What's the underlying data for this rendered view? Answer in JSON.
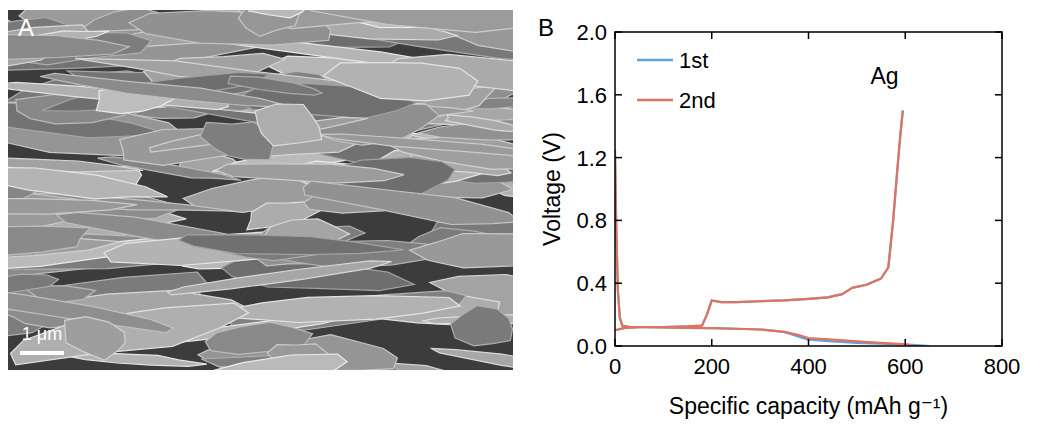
{
  "image_panel": {
    "label": "A",
    "scale_bar": "1 μm"
  },
  "chart_data": {
    "type": "line",
    "panel_label": "B",
    "x_label": "Specific capacity (mAh g⁻¹)",
    "y_label": "Voltage (V)",
    "annotation": "Ag",
    "xlim": [
      0,
      800
    ],
    "xticks": [
      0,
      200,
      400,
      600,
      800
    ],
    "ylim": [
      0,
      2
    ],
    "yticks": [
      {
        "value": 0,
        "label": "0.0"
      },
      0.4,
      0.8,
      1.2,
      1.6,
      {
        "value": 2,
        "label": "2.0"
      }
    ],
    "legend": "upper left",
    "grid": false,
    "series": [
      {
        "name": "1st",
        "color": "#5fa3dc",
        "x": [
          0,
          3,
          6,
          10,
          15,
          30,
          60,
          100,
          150,
          200,
          250,
          300,
          350,
          380,
          400,
          450,
          500,
          550,
          600,
          650,
          null,
          0,
          20,
          50,
          100,
          150,
          180,
          190,
          200,
          220,
          250,
          300,
          350,
          400,
          440,
          470,
          490,
          520,
          550,
          565,
          575,
          583,
          590,
          595
        ],
        "values": [
          1.2,
          0.7,
          0.35,
          0.18,
          0.13,
          0.12,
          0.12,
          0.118,
          0.116,
          0.114,
          0.11,
          0.105,
          0.09,
          0.06,
          0.04,
          0.03,
          0.02,
          0.015,
          0.01,
          0.0,
          null,
          0.1,
          0.115,
          0.12,
          0.12,
          0.125,
          0.13,
          0.2,
          0.29,
          0.28,
          0.28,
          0.285,
          0.29,
          0.3,
          0.31,
          0.33,
          0.37,
          0.39,
          0.43,
          0.5,
          0.8,
          1.1,
          1.35,
          1.5
        ]
      },
      {
        "name": "2nd",
        "color": "#e0735f",
        "x": [
          0,
          3,
          6,
          10,
          15,
          30,
          60,
          100,
          150,
          200,
          250,
          300,
          350,
          380,
          400,
          450,
          500,
          550,
          600,
          620,
          null,
          0,
          20,
          50,
          100,
          150,
          180,
          190,
          200,
          220,
          250,
          300,
          350,
          400,
          440,
          470,
          490,
          520,
          550,
          565,
          575,
          583,
          590,
          595
        ],
        "values": [
          1.25,
          0.7,
          0.35,
          0.18,
          0.13,
          0.12,
          0.12,
          0.118,
          0.116,
          0.114,
          0.11,
          0.105,
          0.09,
          0.07,
          0.05,
          0.04,
          0.03,
          0.02,
          0.01,
          0.0,
          null,
          0.1,
          0.115,
          0.12,
          0.12,
          0.125,
          0.13,
          0.2,
          0.29,
          0.28,
          0.28,
          0.285,
          0.29,
          0.3,
          0.31,
          0.33,
          0.37,
          0.39,
          0.43,
          0.5,
          0.8,
          1.1,
          1.35,
          1.5
        ]
      }
    ]
  }
}
